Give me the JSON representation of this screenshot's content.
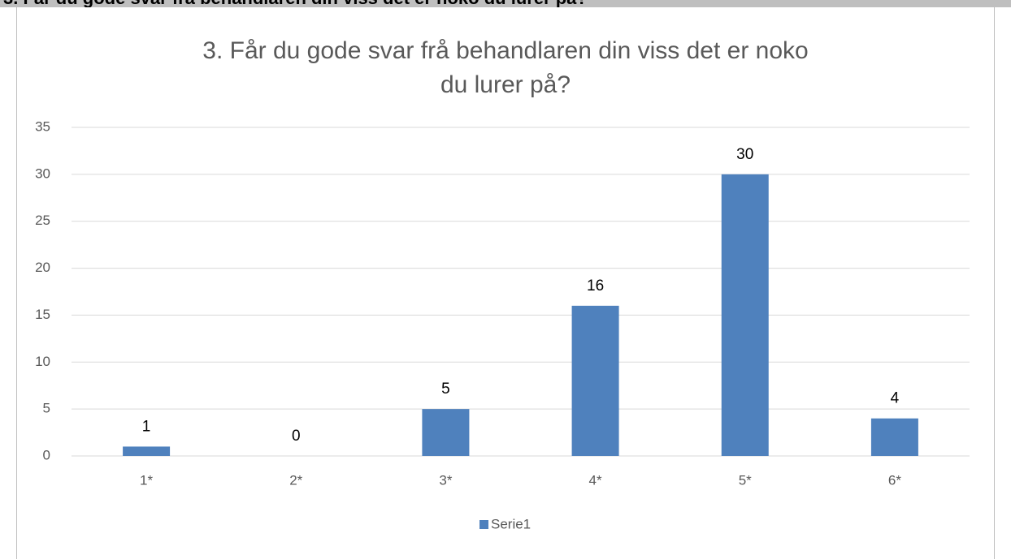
{
  "heading": "3. Får du gode svar frå behandlaren din viss det er noko du lurer på?",
  "chart_data": {
    "type": "bar",
    "title": "3. Får du gode svar frå behandlaren din viss det er noko du lurer på?",
    "categories": [
      "1*",
      "2*",
      "3*",
      "4*",
      "5*",
      "6*"
    ],
    "values": [
      1,
      0,
      5,
      16,
      30,
      4
    ],
    "series_name": "Serie1",
    "color": "#4f81bd",
    "ylim": [
      0,
      35
    ],
    "yticks": [
      0,
      5,
      10,
      15,
      20,
      25,
      30,
      35
    ],
    "grid": true,
    "legend": "bottom"
  }
}
